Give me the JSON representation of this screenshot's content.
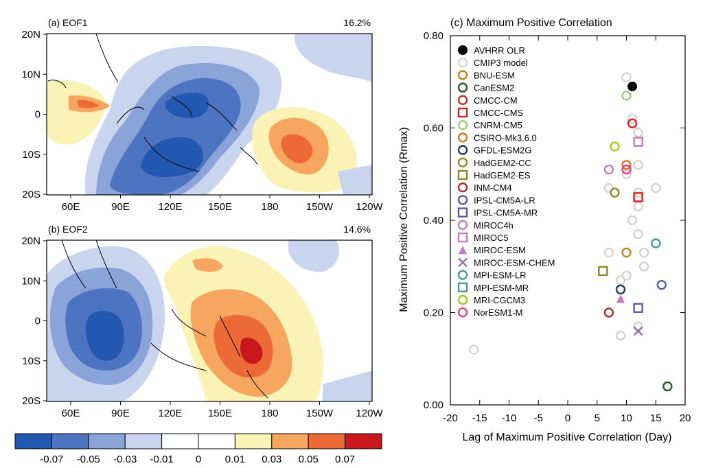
{
  "panels": {
    "a": {
      "label": "(a) EOF1",
      "variance": "16.2%"
    },
    "b": {
      "label": "(b) EOF2",
      "variance": "14.6%"
    },
    "c": {
      "label": "(c) Maximum Positive Correlation"
    }
  },
  "map_axes": {
    "lat_ticks": [
      "20N",
      "10N",
      "0",
      "10S",
      "20S"
    ],
    "lon_ticks": [
      "60E",
      "90E",
      "120E",
      "150E",
      "180",
      "150W",
      "120W"
    ]
  },
  "colorbar": {
    "labels": [
      "-0.07",
      "-0.05",
      "-0.03",
      "-0.01",
      "0",
      "0.01",
      "0.03",
      "0.05",
      "0.07"
    ],
    "colors": [
      "#2358b0",
      "#4d74c0",
      "#8aa3d8",
      "#c9d4ee",
      "#ffffff",
      "#ffffff",
      "#fbf3b6",
      "#f7a660",
      "#ec6a35",
      "#c8171d"
    ]
  },
  "chart_data": {
    "type": "scatter",
    "title": "(c) Maximum Positive Correlation",
    "xlabel": "Lag of Maximum Positive Correlation (Day)",
    "ylabel": "Maximum Positive Correlation (Rmax)",
    "xlim": [
      -20,
      20
    ],
    "ylim": [
      0.0,
      0.8
    ],
    "x_ticks": [
      "-20",
      "-15",
      "-10",
      "-5",
      "0",
      "5",
      "10",
      "15",
      "20"
    ],
    "y_ticks": [
      "0.00",
      "0.20",
      "0.40",
      "0.60",
      "0.80"
    ],
    "legend_position": "top-left",
    "series": [
      {
        "name": "AVHRR OLR",
        "marker": "filled-circle",
        "color": "#000000",
        "points": [
          [
            11,
            0.69
          ]
        ]
      },
      {
        "name": "CMIP3 model",
        "marker": "circle",
        "color": "#d3d3d3",
        "points": [
          [
            10,
            0.71
          ],
          [
            11,
            0.62
          ],
          [
            12,
            0.59
          ],
          [
            12,
            0.52
          ],
          [
            10,
            0.5
          ],
          [
            7,
            0.47
          ],
          [
            12,
            0.46
          ],
          [
            15,
            0.47
          ],
          [
            12,
            0.43
          ],
          [
            11,
            0.4
          ],
          [
            12,
            0.37
          ],
          [
            13,
            0.33
          ],
          [
            7,
            0.33
          ],
          [
            13,
            0.3
          ],
          [
            10,
            0.28
          ],
          [
            9,
            0.27
          ],
          [
            12,
            0.17
          ],
          [
            9,
            0.15
          ],
          [
            -16,
            0.12
          ]
        ]
      },
      {
        "name": "BNU-ESM",
        "marker": "circle",
        "color": "#c8801e",
        "points": [
          [
            10,
            0.33
          ]
        ]
      },
      {
        "name": "CanESM2",
        "marker": "circle",
        "color": "#1f5a1f",
        "points": [
          [
            17,
            0.04
          ]
        ]
      },
      {
        "name": "CMCC-CM",
        "marker": "circle",
        "color": "#e02020",
        "points": [
          [
            11,
            0.61
          ]
        ]
      },
      {
        "name": "CMCC-CMS",
        "marker": "square",
        "color": "#e02020",
        "points": [
          [
            12,
            0.45
          ]
        ]
      },
      {
        "name": "CNRM-CM5",
        "marker": "circle",
        "color": "#9acd80",
        "points": [
          [
            10,
            0.67
          ]
        ]
      },
      {
        "name": "CSIRO-Mk3.6.0",
        "marker": "circle",
        "color": "#e8701c",
        "points": [
          [
            10,
            0.52
          ]
        ]
      },
      {
        "name": "GFDL-ESM2G",
        "marker": "circle",
        "color": "#1c3f6e",
        "points": [
          [
            9,
            0.25
          ]
        ]
      },
      {
        "name": "HadGEM2-CC",
        "marker": "circle",
        "color": "#8a8a22",
        "points": [
          [
            8,
            0.46
          ]
        ]
      },
      {
        "name": "HadGEM2-ES",
        "marker": "square",
        "color": "#8a8a22",
        "points": [
          [
            6,
            0.29
          ]
        ]
      },
      {
        "name": "INM-CM4",
        "marker": "circle",
        "color": "#b02828",
        "points": [
          [
            7,
            0.2
          ]
        ]
      },
      {
        "name": "IPSL-CM5A-LR",
        "marker": "circle",
        "color": "#5858b0",
        "points": [
          [
            16,
            0.26
          ]
        ]
      },
      {
        "name": "IPSL-CM5A-MR",
        "marker": "square",
        "color": "#5858b0",
        "points": [
          [
            12,
            0.21
          ]
        ]
      },
      {
        "name": "MIROC4h",
        "marker": "circle",
        "color": "#c878c8",
        "points": [
          [
            7,
            0.51
          ],
          [
            10,
            0.51
          ]
        ]
      },
      {
        "name": "MIROC5",
        "marker": "square",
        "color": "#c878c8",
        "points": [
          [
            12,
            0.57
          ]
        ]
      },
      {
        "name": "MIROC-ESM",
        "marker": "triangle",
        "color": "#c878c8",
        "points": [
          [
            9,
            0.23
          ]
        ]
      },
      {
        "name": "MIROC-ESM-CHEM",
        "marker": "cross",
        "color": "#9a6cb0",
        "points": [
          [
            12,
            0.16
          ]
        ]
      },
      {
        "name": "MPI-ESM-LR",
        "marker": "circle",
        "color": "#4a9a9a",
        "points": [
          [
            15,
            0.35
          ]
        ]
      },
      {
        "name": "MPI-ESM-MR",
        "marker": "square",
        "color": "#4a9a9a",
        "points": []
      },
      {
        "name": "MRI-CGCM3",
        "marker": "circle",
        "color": "#a8c814",
        "points": [
          [
            8,
            0.56
          ]
        ]
      },
      {
        "name": "NorESM1-M",
        "marker": "circle",
        "color": "#e8408a",
        "points": [
          [
            10,
            0.51
          ]
        ]
      }
    ]
  }
}
